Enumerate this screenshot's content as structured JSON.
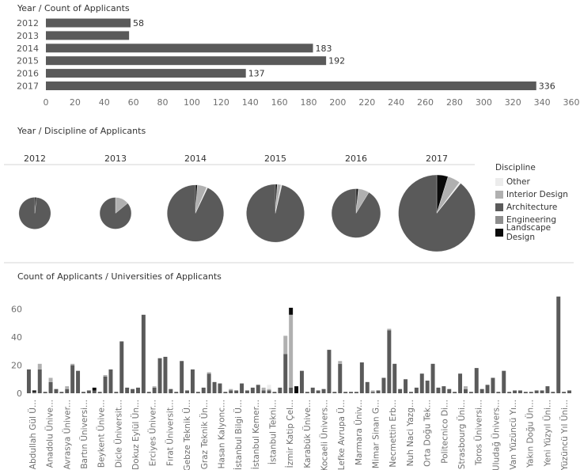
{
  "colors": {
    "Other": "#ececec",
    "Interior Design": "#b0b0b0",
    "Architecture": "#5a5a5a",
    "Engineering": "#8e8e8e",
    "Landscape Design": "#0a0a0a",
    "axis_text": "#6f6f6f",
    "divider": "#d6d6d6"
  },
  "chart_data": [
    {
      "type": "bar",
      "orientation": "horizontal",
      "title": "Year / Count of Applicants",
      "categories": [
        "2012",
        "2013",
        "2014",
        "2015",
        "2016",
        "2017"
      ],
      "values": [
        58,
        57,
        183,
        192,
        137,
        336
      ],
      "data_labels": [
        "58",
        "",
        "183",
        "192",
        "137",
        "336"
      ],
      "xlim": [
        0,
        360
      ],
      "ticks": [
        0,
        20,
        40,
        60,
        80,
        100,
        120,
        140,
        160,
        180,
        200,
        220,
        240,
        260,
        280,
        300,
        320,
        340,
        360
      ]
    },
    {
      "type": "pie",
      "title": "Year / Discipline of Applicants",
      "legend_title": "Discipline",
      "legend_position": "right",
      "categories": [
        "Other",
        "Interior Design",
        "Architecture",
        "Engineering",
        "Landscape Design"
      ],
      "years": [
        {
          "label": "2012",
          "total": 58,
          "values": {
            "Other": 0,
            "Interior Design": 0,
            "Architecture": 57,
            "Engineering": 0,
            "Landscape Design": 1
          }
        },
        {
          "label": "2013",
          "total": 57,
          "values": {
            "Other": 0,
            "Interior Design": 8,
            "Architecture": 49,
            "Engineering": 0,
            "Landscape Design": 0
          }
        },
        {
          "label": "2014",
          "total": 183,
          "values": {
            "Other": 1,
            "Interior Design": 10,
            "Architecture": 170,
            "Engineering": 0,
            "Landscape Design": 2
          }
        },
        {
          "label": "2015",
          "total": 192,
          "values": {
            "Other": 1,
            "Interior Design": 4,
            "Architecture": 185,
            "Engineering": 0,
            "Landscape Design": 2
          }
        },
        {
          "label": "2016",
          "total": 137,
          "values": {
            "Other": 0,
            "Interior Design": 10,
            "Architecture": 125,
            "Engineering": 0,
            "Landscape Design": 2
          }
        },
        {
          "label": "2017",
          "total": 336,
          "values": {
            "Other": 2,
            "Interior Design": 18,
            "Architecture": 300,
            "Engineering": 0,
            "Landscape Design": 16
          }
        }
      ]
    },
    {
      "type": "bar",
      "stacked": true,
      "title": "Count of Applicants / Universities of Applicants",
      "ylim": [
        0,
        70
      ],
      "yticks": [
        0,
        20,
        40,
        60
      ],
      "tick_labels": [
        "Abdullah Gül Ü...",
        "Anadolu Ünive...",
        "Avrasya Üniver...",
        "Bartın Üniversi...",
        "Beykent Ünive...",
        "Dicle Üniversit...",
        "Dokuz Eylül Ün...",
        "Erciyes Üniver...",
        "Fırat Üniversit...",
        "Gebze Teknik Ü...",
        "Graz Teknik Ün...",
        "Hasan Kalyonc...",
        "İstanbul Bilgi Ü...",
        "İstanbul Kemer...",
        "İstanbul Tekni...",
        "İzmir Katip Çel...",
        "Karabük Ünive...",
        "Kocaeli Ünivers...",
        "Lefke Avrupa Ü...",
        "Marmara Üniv...",
        "Mimar Sinan G...",
        "Necmettin Erb...",
        "Nuh Naci Yazg...",
        "Orta Doğu Tek...",
        "Politecnico Di...",
        "Strasbourg Üni...",
        "Toros Üniversi...",
        "Uludağ Ünivers...",
        "Van Yüzüncü Yı...",
        "Yakın Doğu Ün...",
        "Yeni Yüzyıl Üni...",
        "Yüzüncü Yıl Üni..."
      ],
      "series_order": [
        "Architecture",
        "Interior Design",
        "Other",
        "Landscape Design"
      ],
      "bars": [
        {
          "Architecture": 17
        },
        {
          "Architecture": 1,
          "Landscape Design": 1
        },
        {
          "Architecture": 17,
          "Interior Design": 4
        },
        {
          "Architecture": 1
        },
        {
          "Architecture": 8,
          "Interior Design": 3
        },
        {
          "Architecture": 3
        },
        {
          "Architecture": 1
        },
        {
          "Architecture": 3,
          "Interior Design": 2
        },
        {
          "Architecture": 20,
          "Interior Design": 1
        },
        {
          "Architecture": 16
        },
        {
          "Architecture": 1
        },
        {
          "Architecture": 2
        },
        {
          "Architecture": 2,
          "Landscape Design": 2
        },
        {
          "Architecture": 1
        },
        {
          "Architecture": 12,
          "Interior Design": 1
        },
        {
          "Architecture": 17
        },
        {
          "Architecture": 1
        },
        {
          "Architecture": 37
        },
        {
          "Architecture": 4
        },
        {
          "Architecture": 3
        },
        {
          "Architecture": 4
        },
        {
          "Architecture": 56
        },
        {
          "Architecture": 1
        },
        {
          "Architecture": 4,
          "Interior Design": 1
        },
        {
          "Architecture": 25
        },
        {
          "Architecture": 26
        },
        {
          "Architecture": 3
        },
        {
          "Architecture": 1
        },
        {
          "Architecture": 23
        },
        {
          "Architecture": 2
        },
        {
          "Architecture": 17
        },
        {
          "Architecture": 1
        },
        {
          "Architecture": 4
        },
        {
          "Architecture": 14,
          "Interior Design": 1
        },
        {
          "Architecture": 8
        },
        {
          "Architecture": 7
        },
        {
          "Architecture": 1
        },
        {
          "Architecture": 2,
          "Interior Design": 1
        },
        {
          "Architecture": 2
        },
        {
          "Architecture": 7
        },
        {
          "Architecture": 2
        },
        {
          "Architecture": 4
        },
        {
          "Architecture": 6
        },
        {
          "Architecture": 2,
          "Interior Design": 2
        },
        {
          "Architecture": 2,
          "Interior Design": 1,
          "Other": 3
        },
        {
          "Architecture": 1
        },
        {
          "Architecture": 4
        },
        {
          "Architecture": 28,
          "Interior Design": 13
        },
        {
          "Architecture": 4,
          "Landscape Design": 5,
          "Interior Design": 52
        },
        {
          "Landscape Design": 5
        },
        {
          "Architecture": 16
        },
        {
          "Architecture": 1
        },
        {
          "Architecture": 4
        },
        {
          "Architecture": 2
        },
        {
          "Architecture": 3
        },
        {
          "Architecture": 31
        },
        {
          "Architecture": 1
        },
        {
          "Architecture": 21,
          "Interior Design": 2
        },
        {
          "Architecture": 1
        },
        {
          "Architecture": 1
        },
        {
          "Architecture": 1
        },
        {
          "Architecture": 22
        },
        {
          "Architecture": 8
        },
        {
          "Architecture": 1,
          "Interior Design": 1
        },
        {
          "Architecture": 2
        },
        {
          "Architecture": 11
        },
        {
          "Architecture": 45,
          "Interior Design": 1
        },
        {
          "Architecture": 21
        },
        {
          "Architecture": 3
        },
        {
          "Architecture": 10
        },
        {
          "Architecture": 1
        },
        {
          "Architecture": 4
        },
        {
          "Architecture": 14
        },
        {
          "Architecture": 9
        },
        {
          "Architecture": 21
        },
        {
          "Architecture": 4
        },
        {
          "Architecture": 5
        },
        {
          "Architecture": 3
        },
        {
          "Architecture": 1
        },
        {
          "Architecture": 14
        },
        {
          "Architecture": 3,
          "Interior Design": 2
        },
        {
          "Architecture": 1
        },
        {
          "Architecture": 18
        },
        {
          "Architecture": 3
        },
        {
          "Architecture": 6
        },
        {
          "Architecture": 11
        },
        {
          "Architecture": 1
        },
        {
          "Architecture": 16
        },
        {
          "Architecture": 1
        },
        {
          "Architecture": 2
        },
        {
          "Architecture": 2
        },
        {
          "Architecture": 1
        },
        {
          "Architecture": 1
        },
        {
          "Architecture": 2
        },
        {
          "Architecture": 2
        },
        {
          "Architecture": 5
        },
        {
          "Architecture": 1
        },
        {
          "Architecture": 69
        },
        {
          "Architecture": 1
        },
        {
          "Architecture": 2
        }
      ]
    }
  ]
}
